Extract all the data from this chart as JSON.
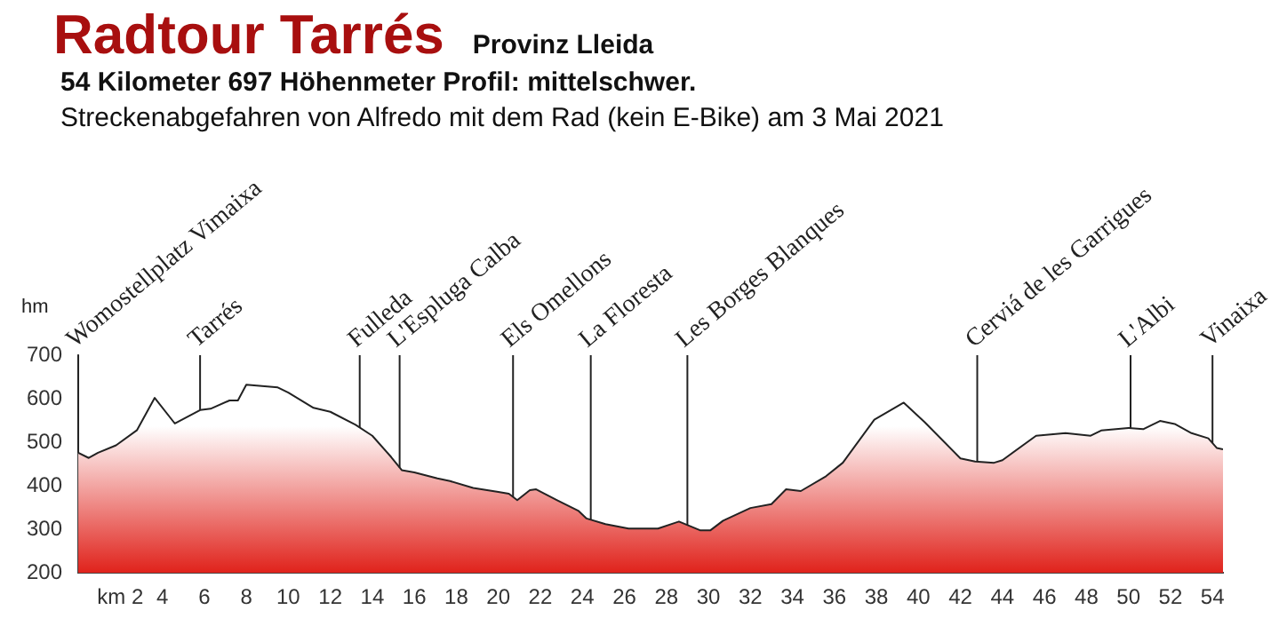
{
  "chart_data": {
    "type": "area",
    "title": "Radtour Tarrés",
    "subtitle": "Provinz Lleida",
    "annotations": [
      "54 Kilometer  697 Höhenmeter  Profil: mittelschwer.",
      "Streckenabgefahren von Alfredo mit dem Rad (kein E-Bike) am 3 Mai 2021"
    ],
    "ylabel": "hm",
    "x": [
      0,
      0.5,
      0.94,
      1.8,
      2.8,
      3.64,
      4.6,
      5.8,
      6.3,
      7.2,
      7.6,
      8.0,
      9.5,
      10,
      11.2,
      12,
      13.2,
      14,
      14.9,
      15.4,
      16,
      17.1,
      17.7,
      18.8,
      20,
      20.5,
      20.9,
      21.5,
      21.8,
      22.8,
      23.8,
      24.2,
      25.1,
      26.2,
      27.6,
      28.6,
      29.6,
      30.1,
      30.7,
      32,
      33,
      33.7,
      34.4,
      35.6,
      36.4,
      37.9,
      39.3,
      40.3,
      42,
      42.7,
      43.6,
      44,
      45.6,
      47,
      48.2,
      48.7,
      50,
      50.7,
      51.5,
      52.2,
      53,
      53.8,
      54.2,
      54.5
    ],
    "series": [
      {
        "color": "#e0221b",
        "values": [
          476,
          464,
          476,
          493,
          528,
          602,
          543,
          574,
          577,
          596,
          596,
          632,
          626,
          614,
          579,
          570,
          540,
          515,
          466,
          436,
          431,
          417,
          411,
          395,
          386,
          382,
          367,
          390,
          392,
          367,
          343,
          325,
          312,
          302,
          302,
          318,
          298,
          298,
          320,
          349,
          358,
          392,
          388,
          422,
          453,
          552,
          591,
          546,
          463,
          456,
          453,
          459,
          515,
          521,
          515,
          527,
          533,
          530,
          549,
          542,
          521,
          509,
          487,
          484
        ]
      }
    ],
    "xlim": [
      0,
      54.5
    ],
    "xticks": [
      {
        "value": 2,
        "label": "km 2"
      },
      4,
      6,
      8,
      10,
      12,
      14,
      16,
      18,
      20,
      22,
      24,
      26,
      28,
      30,
      32,
      34,
      36,
      38,
      40,
      42,
      44,
      46,
      48,
      50,
      52,
      54
    ],
    "ylim": [
      200,
      700
    ],
    "yticks": [
      200,
      300,
      400,
      500,
      600,
      700
    ],
    "ref_lines": [
      {
        "axis": "x",
        "value": 0,
        "label": "Womostellplatz Vimaixa"
      },
      {
        "axis": "x",
        "value": 5.8,
        "label": "Tarrés"
      },
      {
        "axis": "x",
        "value": 13.4,
        "label": "Fulleda"
      },
      {
        "axis": "x",
        "value": 15.3,
        "label": "L'Espluga Calba"
      },
      {
        "axis": "x",
        "value": 20.7,
        "label": "Els Omellons"
      },
      {
        "axis": "x",
        "value": 24.4,
        "label": "La Floresta"
      },
      {
        "axis": "x",
        "value": 29.0,
        "label": "Les Borges Blanques"
      },
      {
        "axis": "x",
        "value": 42.8,
        "label": "Cerviá de les Garrigues"
      },
      {
        "axis": "x",
        "value": 50.1,
        "label": "L'Albi"
      },
      {
        "axis": "x",
        "value": 54.0,
        "label": "Vinaixa"
      }
    ],
    "grid": false,
    "legend": false,
    "marker": "none",
    "line_style": "solid"
  }
}
